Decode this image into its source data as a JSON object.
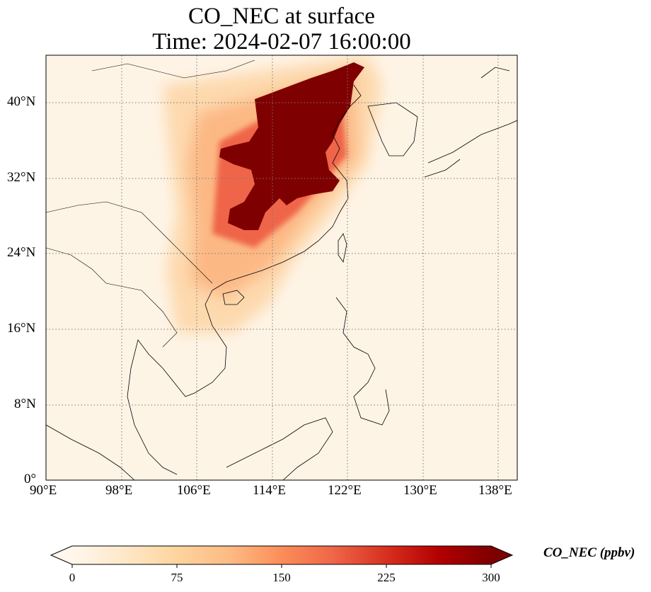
{
  "title": {
    "line1": "CO_NEC at surface",
    "line2": "Time: 2024-02-07 16:00:00"
  },
  "map": {
    "projection": "PlateCarree",
    "lon_range": [
      90,
      140
    ],
    "lat_range": [
      0,
      45
    ],
    "gridlines": "dotted",
    "lon_ticks": [
      "90°E",
      "98°E",
      "106°E",
      "114°E",
      "122°E",
      "130°E",
      "138°E"
    ],
    "lat_ticks": [
      "0°",
      "8°N",
      "16°N",
      "24°N",
      "32°N",
      "40°N"
    ],
    "field": "CO_NEC",
    "high_concentration_region": "North China Plain and central-east China (~108–122°E, 27–43°N), saturated above 300 ppbv"
  },
  "colorbar": {
    "label": "CO_NEC (ppbv)",
    "ticks": [
      "0",
      "75",
      "150",
      "225",
      "300"
    ],
    "min": 0,
    "max": 300,
    "extend": "both",
    "colormap": "OrRd",
    "colors": [
      "#fff7ec",
      "#fee8c8",
      "#fdd49e",
      "#fdbb84",
      "#fc8d59",
      "#ef6548",
      "#d7301f",
      "#b30000",
      "#7f0000"
    ]
  }
}
